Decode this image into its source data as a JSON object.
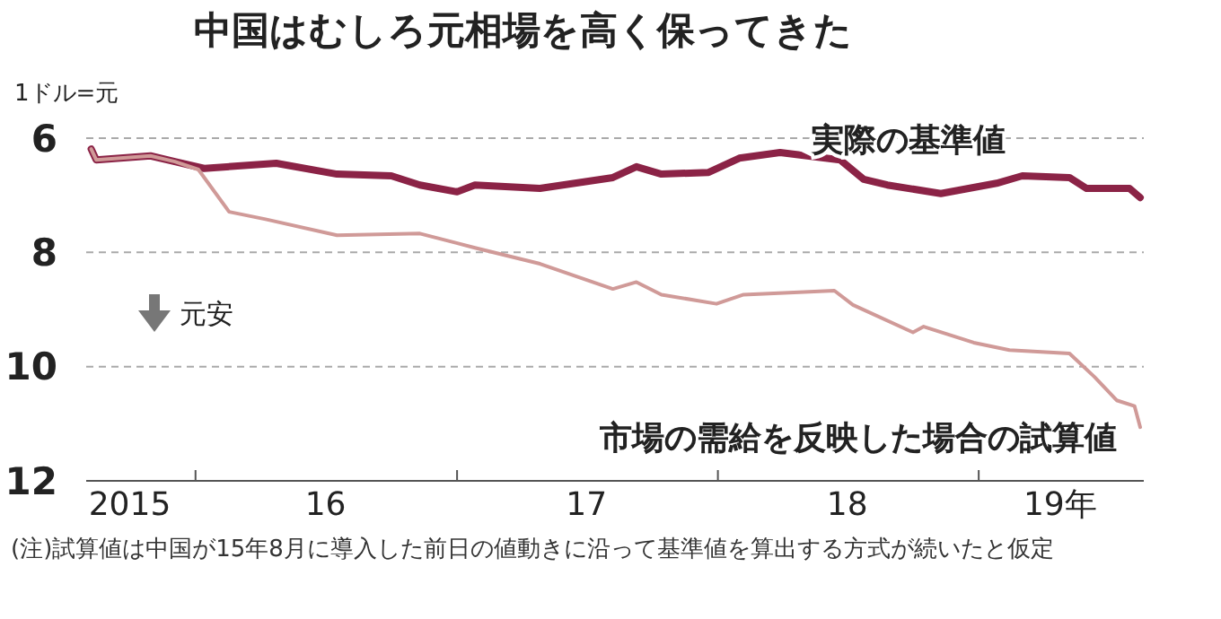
{
  "chart_data": {
    "type": "line",
    "title": "中国はむしろ元相場を高く保ってきた",
    "ylabel": "1ドル=元",
    "xlim": [
      "2015-08-01",
      "2019-08-20"
    ],
    "ylim": [
      12,
      6
    ],
    "yticks": [
      6,
      8,
      10,
      12
    ],
    "xticks": [
      {
        "value": "2015-10-01",
        "label": "2015"
      },
      {
        "value": "2016-01-01",
        "label": null
      },
      {
        "value": "2016-07-01",
        "label": "16"
      },
      {
        "value": "2017-01-01",
        "label": null
      },
      {
        "value": "2017-07-01",
        "label": "17"
      },
      {
        "value": "2018-01-01",
        "label": null
      },
      {
        "value": "2018-07-01",
        "label": "18"
      },
      {
        "value": "2019-01-01",
        "label": null
      },
      {
        "value": "2019-04-25",
        "label": "19年"
      }
    ],
    "grid": "y",
    "legend": false,
    "line_style": "solid",
    "marker": "none",
    "series": [
      {
        "name": "実際の基準値",
        "color": "#8b2346",
        "x": [
          "2015-08-08",
          "2015-08-15",
          "2015-10-30",
          "2015-12-03",
          "2016-01-13",
          "2016-04-23",
          "2016-07-17",
          "2016-10-01",
          "2016-11-10",
          "2017-01-01",
          "2017-01-26",
          "2017-04-27",
          "2017-08-07",
          "2017-09-09",
          "2017-10-14",
          "2017-12-19",
          "2018-01-31",
          "2018-03-29",
          "2018-06-21",
          "2018-07-24",
          "2018-08-26",
          "2018-11-09",
          "2019-01-26",
          "2019-03-03",
          "2019-05-08",
          "2019-06-01",
          "2019-07-31",
          "2019-08-15"
        ],
        "values": [
          6.19,
          6.38,
          6.31,
          6.41,
          6.53,
          6.44,
          6.63,
          6.66,
          6.82,
          6.94,
          6.82,
          6.88,
          6.69,
          6.5,
          6.63,
          6.6,
          6.35,
          6.25,
          6.38,
          6.72,
          6.82,
          6.97,
          6.79,
          6.66,
          6.69,
          6.88,
          6.88,
          7.04
        ]
      },
      {
        "name": "市場の需給を反映した場合の試算値",
        "color": "#d09a98",
        "x": [
          "2015-08-08",
          "2015-08-15",
          "2015-10-30",
          "2015-12-03",
          "2016-01-05",
          "2016-02-17",
          "2016-04-08",
          "2016-07-17",
          "2016-11-10",
          "2017-01-26",
          "2017-04-27",
          "2017-08-07",
          "2017-09-09",
          "2017-10-14",
          "2017-12-30",
          "2018-02-06",
          "2018-06-13",
          "2018-07-09",
          "2018-10-01",
          "2018-10-16",
          "2018-12-25",
          "2019-02-13",
          "2019-05-08",
          "2019-06-12",
          "2019-07-13",
          "2019-08-07",
          "2019-08-15"
        ],
        "values": [
          6.19,
          6.38,
          6.31,
          6.41,
          6.55,
          7.29,
          7.42,
          7.7,
          7.67,
          7.92,
          8.2,
          8.64,
          8.52,
          8.74,
          8.9,
          8.74,
          8.67,
          8.92,
          9.4,
          9.3,
          9.58,
          9.71,
          9.77,
          10.18,
          10.59,
          10.69,
          11.06
        ]
      }
    ],
    "annotations": [
      "元安",
      "(注)試算値は中国が15年8月に導入した前日の値動きに沿って基準値を算出する方式が続いたと仮定"
    ]
  }
}
